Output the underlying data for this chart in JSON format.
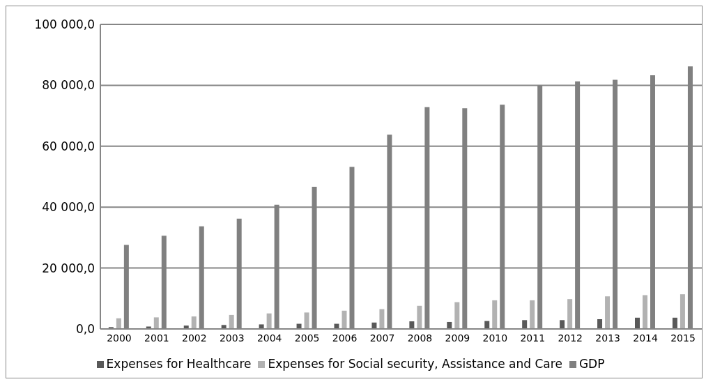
{
  "chart_data": {
    "type": "bar",
    "categories": [
      "2000",
      "2001",
      "2002",
      "2003",
      "2004",
      "2005",
      "2006",
      "2007",
      "2008",
      "2009",
      "2010",
      "2011",
      "2012",
      "2013",
      "2014",
      "2015"
    ],
    "series": [
      {
        "name": "Expenses for Healthcare",
        "color": "#595959",
        "values": [
          600,
          800,
          1100,
          1300,
          1500,
          1700,
          1700,
          2100,
          2500,
          2300,
          2600,
          2900,
          2900,
          3200,
          3700,
          3700
        ]
      },
      {
        "name": "Expenses for Social security, Assistance and Care",
        "color": "#b2b2b2",
        "values": [
          3500,
          3800,
          4100,
          4600,
          5100,
          5400,
          6000,
          6500,
          7600,
          8800,
          9400,
          9400,
          9800,
          10700,
          11100,
          11400
        ]
      },
      {
        "name": "GDP",
        "color": "#808080",
        "values": [
          27600,
          30600,
          33700,
          36200,
          40800,
          46700,
          53200,
          63800,
          72800,
          72500,
          73600,
          79900,
          81300,
          81800,
          83300,
          86200
        ]
      }
    ],
    "ylim": [
      0,
      100000
    ],
    "yticks": [
      {
        "value": 0,
        "label": "0,0"
      },
      {
        "value": 20000,
        "label": "20 000,0"
      },
      {
        "value": 40000,
        "label": "40 000,0"
      },
      {
        "value": 60000,
        "label": "60 000,0"
      },
      {
        "value": 80000,
        "label": "80 000,0"
      },
      {
        "value": 100000,
        "label": "100 000,0"
      }
    ],
    "grid": "y",
    "legend": "bottom"
  }
}
